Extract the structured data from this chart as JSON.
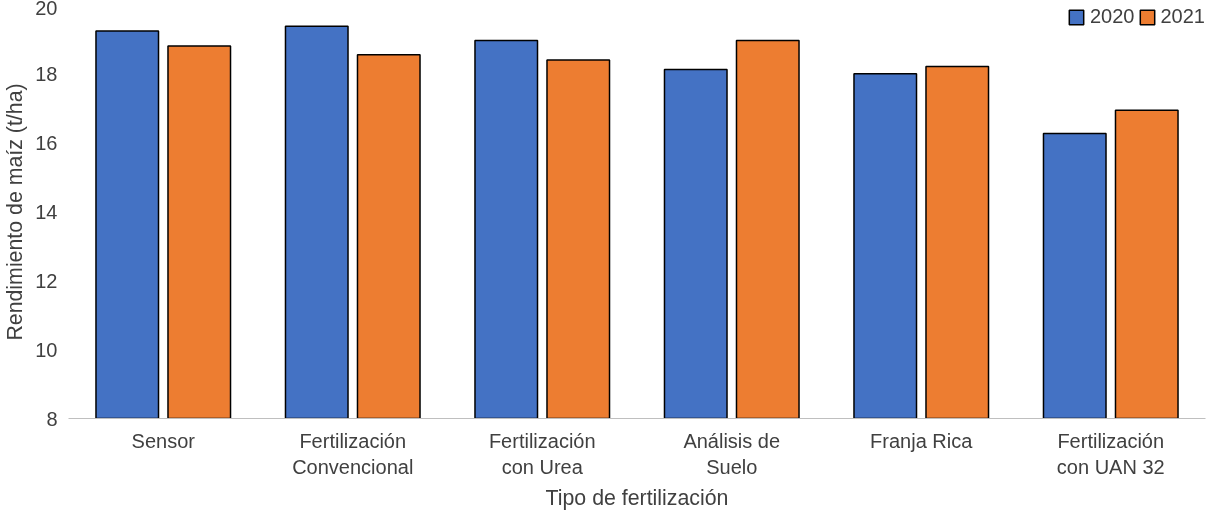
{
  "chart_data": {
    "type": "bar",
    "xlabel": "Tipo de fertilización",
    "ylabel": "Rendimiento de maíz (t/ha)",
    "categories": [
      "Sensor",
      "Fertilización Convencional",
      "Fertilización con Urea",
      "Análisis de Suelo",
      "Franja Rica",
      "Fertilización con UAN 32"
    ],
    "series": [
      {
        "name": "2020",
        "color": "#4472c4",
        "values": [
          19.26,
          19.4,
          18.98,
          18.14,
          18.02,
          16.28
        ]
      },
      {
        "name": "2021",
        "color": "#ed7d31",
        "values": [
          18.82,
          18.57,
          18.42,
          18.98,
          18.23,
          16.96
        ]
      }
    ],
    "ylim": [
      8,
      20
    ],
    "yticks": [
      8,
      10,
      12,
      14,
      16,
      18,
      20
    ],
    "grid": false,
    "legend": "top right"
  }
}
